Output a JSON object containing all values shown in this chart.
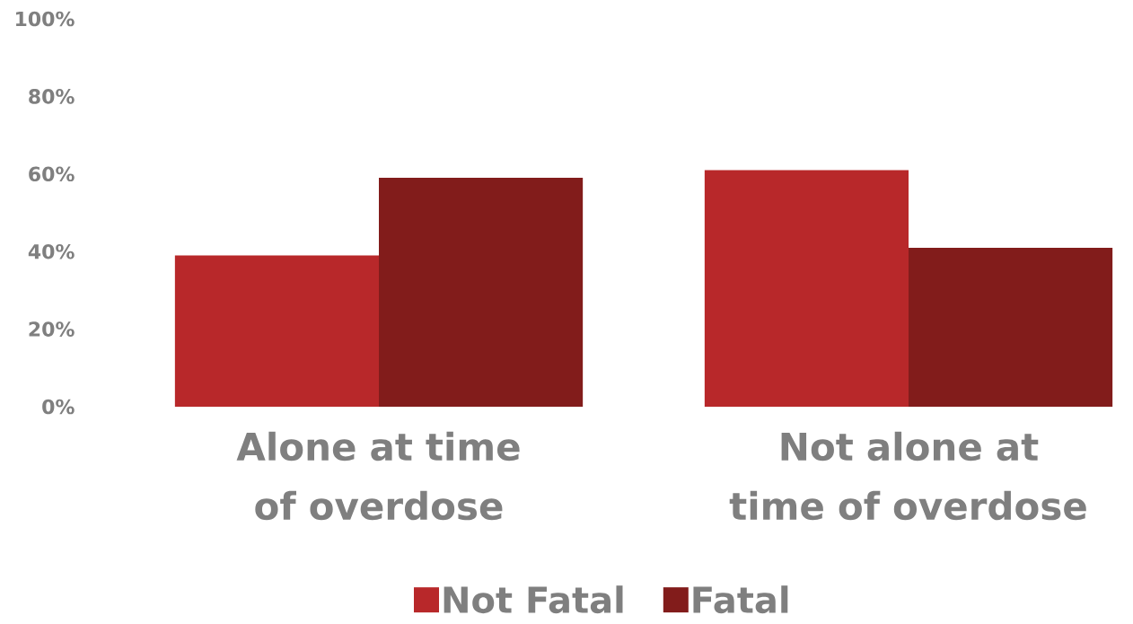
{
  "chart_data": {
    "type": "bar",
    "categories": [
      "Alone at time of overdose",
      "Not alone at time of overdose"
    ],
    "series": [
      {
        "name": "Not Fatal",
        "color": "#b8282a",
        "values": [
          39,
          61
        ]
      },
      {
        "name": "Fatal",
        "color": "#821c1b",
        "values": [
          59,
          41
        ]
      }
    ],
    "ylim": [
      0,
      100
    ],
    "yticks": [
      {
        "value": 0,
        "label": "0%"
      },
      {
        "value": 20,
        "label": "20%"
      },
      {
        "value": 40,
        "label": "40%"
      },
      {
        "value": 60,
        "label": "60%"
      },
      {
        "value": 80,
        "label": "80%"
      },
      {
        "value": 100,
        "label": "100%"
      }
    ],
    "grid": false,
    "legend": "bottom"
  }
}
